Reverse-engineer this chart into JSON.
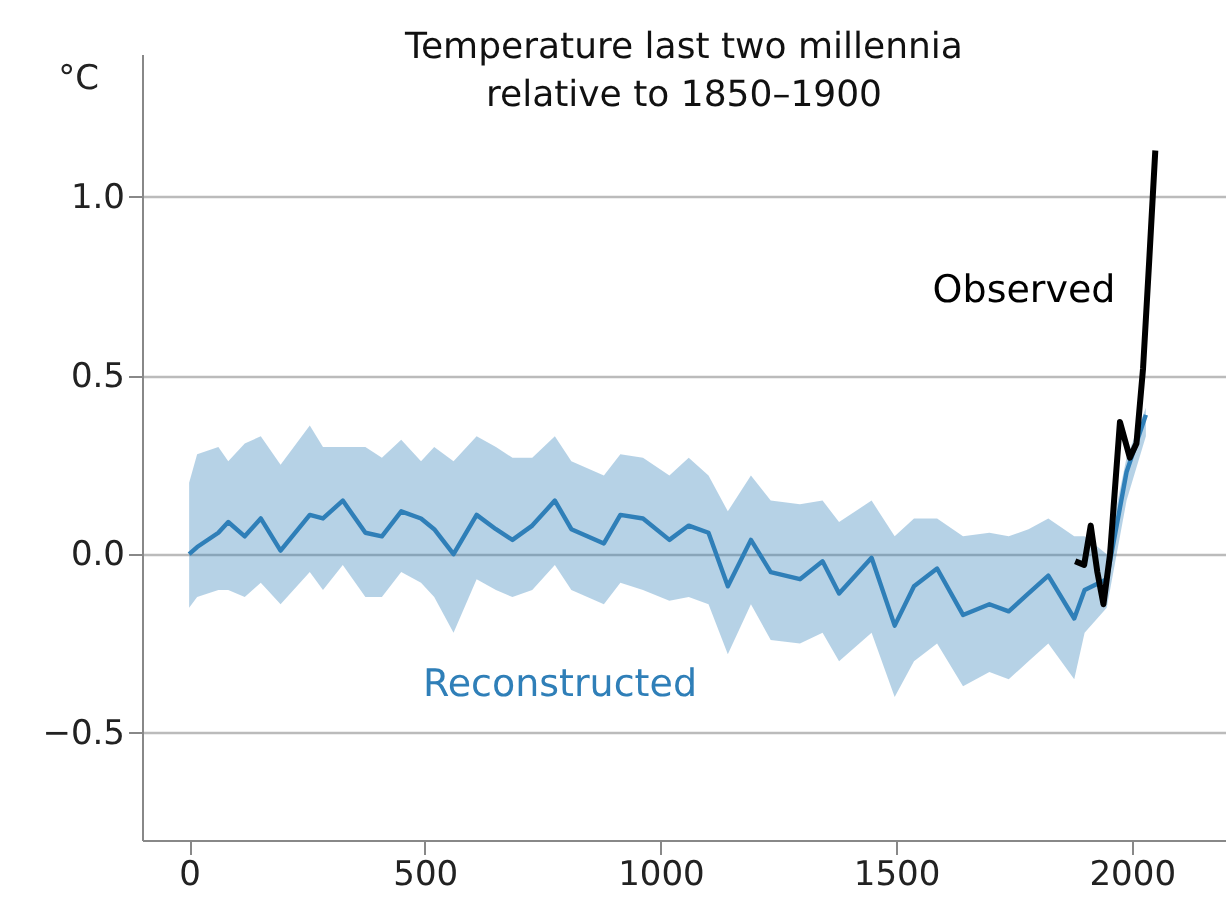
{
  "chart_data": {
    "type": "line",
    "title": "Temperature last two millennia\nrelative to 1850–1900",
    "ylabel": "°C",
    "xlim": [
      -100,
      2200
    ],
    "xticks": [
      0,
      500,
      1000,
      1500,
      2000
    ],
    "ylim": [
      -0.8,
      1.4
    ],
    "yticks": [
      {
        "value": -0.5,
        "label": "−0.5"
      },
      {
        "value": 0,
        "label": "0.0"
      },
      {
        "value": 0.5,
        "label": "0.5"
      },
      {
        "value": 1,
        "label": "1.0"
      }
    ],
    "grid": "y",
    "series": [
      {
        "name": "Reconstructed",
        "color": "#2f7fb8",
        "x": [
          0,
          17,
          62,
          83,
          118,
          152,
          194,
          256,
          284,
          326,
          374,
          409,
          450,
          492,
          520,
          561,
          610,
          651,
          686,
          728,
          776,
          811,
          880,
          915,
          963,
          1019,
          1060,
          1102,
          1143,
          1192,
          1234,
          1296,
          1344,
          1379,
          1448,
          1497,
          1538,
          1587,
          1642,
          1698,
          1739,
          1781,
          1823,
          1878,
          1900,
          1947,
          1989,
          2030
        ],
        "values": [
          0.0,
          0.02,
          0.06,
          0.09,
          0.05,
          0.1,
          0.01,
          0.11,
          0.1,
          0.15,
          0.06,
          0.05,
          0.12,
          0.1,
          0.07,
          0.0,
          0.11,
          0.07,
          0.04,
          0.08,
          0.15,
          0.07,
          0.03,
          0.11,
          0.1,
          0.04,
          0.08,
          0.06,
          -0.09,
          0.04,
          -0.05,
          -0.07,
          -0.02,
          -0.11,
          -0.01,
          -0.2,
          -0.09,
          -0.04,
          -0.17,
          -0.14,
          -0.16,
          -0.11,
          -0.06,
          -0.18,
          -0.1,
          -0.07,
          0.23,
          0.39
        ],
        "upper": [
          0.2,
          0.28,
          0.3,
          0.26,
          0.31,
          0.33,
          0.25,
          0.36,
          0.3,
          0.3,
          0.3,
          0.27,
          0.32,
          0.26,
          0.3,
          0.26,
          0.33,
          0.3,
          0.27,
          0.27,
          0.33,
          0.26,
          0.22,
          0.28,
          0.27,
          0.22,
          0.27,
          0.22,
          0.12,
          0.22,
          0.15,
          0.14,
          0.15,
          0.09,
          0.15,
          0.05,
          0.1,
          0.1,
          0.05,
          0.06,
          0.05,
          0.07,
          0.1,
          0.05,
          0.05,
          0.0,
          0.27,
          0.41
        ],
        "lower": [
          -0.15,
          -0.12,
          -0.1,
          -0.1,
          -0.12,
          -0.08,
          -0.14,
          -0.05,
          -0.1,
          -0.03,
          -0.12,
          -0.12,
          -0.05,
          -0.08,
          -0.12,
          -0.22,
          -0.07,
          -0.1,
          -0.12,
          -0.1,
          -0.03,
          -0.1,
          -0.14,
          -0.08,
          -0.1,
          -0.13,
          -0.12,
          -0.14,
          -0.28,
          -0.14,
          -0.24,
          -0.25,
          -0.22,
          -0.3,
          -0.22,
          -0.4,
          -0.3,
          -0.25,
          -0.37,
          -0.33,
          -0.35,
          -0.3,
          -0.25,
          -0.35,
          -0.22,
          -0.15,
          0.15,
          0.33
        ]
      },
      {
        "name": "Observed",
        "color": "#000000",
        "x": [
          1880,
          1899,
          1913,
          1927,
          1940,
          1954,
          1975,
          1996,
          2010,
          2024,
          2037,
          2050
        ],
        "values": [
          -0.02,
          -0.03,
          0.08,
          -0.05,
          -0.14,
          0.0,
          0.37,
          0.27,
          0.31,
          0.52,
          0.82,
          1.13
        ]
      }
    ]
  }
}
